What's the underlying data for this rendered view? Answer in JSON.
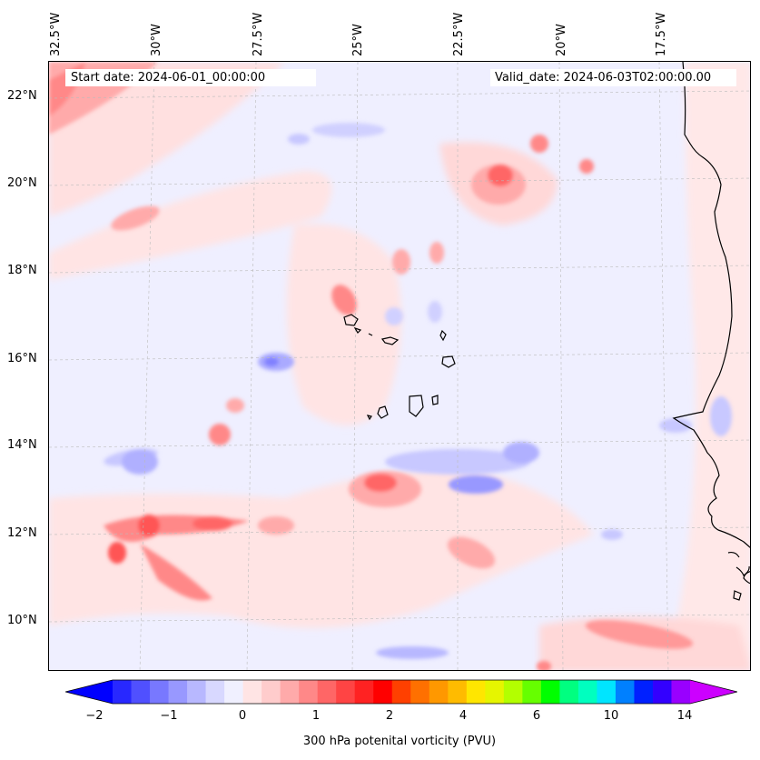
{
  "map": {
    "lon_labels": [
      "32.5°W",
      "30°W",
      "27.5°W",
      "25°W",
      "22.5°W",
      "20°W",
      "17.5°W"
    ],
    "lat_labels": [
      "22°N",
      "20°N",
      "18°N",
      "16°N",
      "14°N",
      "12°N",
      "10°N"
    ],
    "start_date": "Start date: 2024-06-01_00:00:00",
    "valid_date": "Valid_date: 2024-06-03T02:00:00.00"
  },
  "colorbar": {
    "ticks": [
      "−2",
      "−1",
      "0",
      "1",
      "2",
      "4",
      "6",
      "10",
      "14"
    ],
    "label": "300 hPa potenital vorticity (PVU)",
    "colors": [
      "#0000ff",
      "#2828ff",
      "#5050ff",
      "#7878ff",
      "#9898ff",
      "#b8b8ff",
      "#d8d8ff",
      "#f0f0ff",
      "#ffe4e4",
      "#ffcccc",
      "#ffaaaa",
      "#ff8888",
      "#ff6666",
      "#ff4444",
      "#ff2222",
      "#ff0000",
      "#ff4000",
      "#ff7000",
      "#ff9800",
      "#ffbb00",
      "#ffe600",
      "#e6f500",
      "#b3ff00",
      "#66ff00",
      "#00ff00",
      "#00ff80",
      "#00ffbf",
      "#00e5ff",
      "#0080ff",
      "#0020ff",
      "#3300ff",
      "#9900ff",
      "#cc00ff"
    ]
  }
}
